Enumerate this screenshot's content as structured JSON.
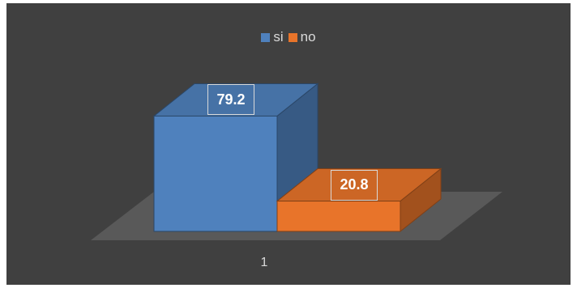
{
  "chart_data": {
    "type": "bar",
    "categories": [
      "1"
    ],
    "series": [
      {
        "name": "si",
        "values": [
          79.2
        ],
        "color": "#4f81bd"
      },
      {
        "name": "no",
        "values": [
          20.8
        ],
        "color": "#e8742a"
      }
    ],
    "data_labels": [
      "79.2",
      "20.8"
    ],
    "ylim": [
      0,
      100
    ],
    "legend": "top-center",
    "grid": false,
    "style": "3d-column",
    "background": "#404040"
  }
}
